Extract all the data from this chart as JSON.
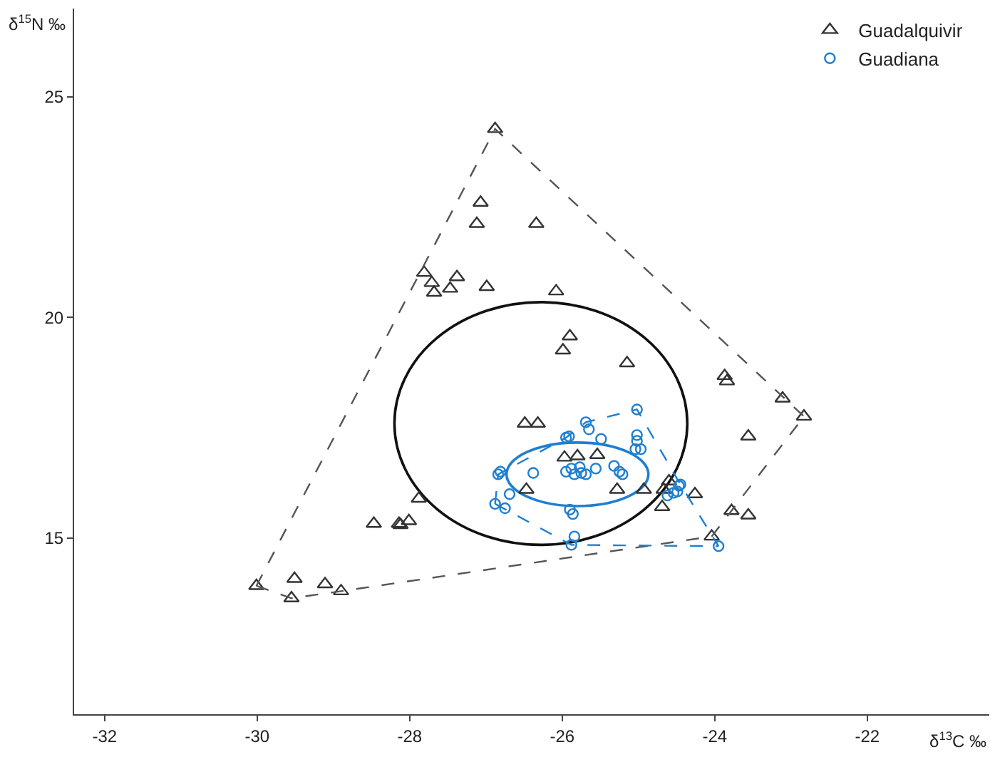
{
  "chart_data": {
    "type": "scatter",
    "xlabel": "δ$^{13}$C ‰",
    "ylabel": "δ$^{15}$N ‰",
    "xlim": [
      -32.4,
      -20.4
    ],
    "ylim": [
      11.0,
      27.0
    ],
    "xticks": [
      -32,
      -30,
      -28,
      -26,
      -24,
      -22
    ],
    "yticks": [
      15,
      20,
      25
    ],
    "grid": false,
    "legend": "top right",
    "series": [
      {
        "name": "Guadalquivir",
        "color": "#333333",
        "marker": "triangle",
        "x": [
          -26.88,
          -27.07,
          -27.12,
          -26.34,
          -27.81,
          -27.71,
          -27.68,
          -27.38,
          -27.47,
          -26.99,
          -26.08,
          -25.9,
          -25.99,
          -25.15,
          -26.49,
          -26.32,
          -25.97,
          -25.8,
          -25.54,
          -26.47,
          -25.28,
          -24.93,
          -24.67,
          -24.6,
          -24.69,
          -24.26,
          -23.78,
          -23.56,
          -24.04,
          -23.56,
          -23.87,
          -23.84,
          -23.11,
          -22.83,
          -27.88,
          -28.47,
          -28.14,
          -28.12,
          -28.01,
          -30.01,
          -29.51,
          -29.55,
          -29.11,
          -28.9
        ],
        "values": [
          24.27,
          22.6,
          22.12,
          22.12,
          21.01,
          20.78,
          20.56,
          20.91,
          20.65,
          20.69,
          20.59,
          19.57,
          19.25,
          18.96,
          17.59,
          17.59,
          16.82,
          16.85,
          16.88,
          16.09,
          16.09,
          16.09,
          16.09,
          16.28,
          15.7,
          15.99,
          15.61,
          15.51,
          15.03,
          17.3,
          18.67,
          18.55,
          18.16,
          17.75,
          15.89,
          15.32,
          15.32,
          15.29,
          15.38,
          13.91,
          14.07,
          13.63,
          13.95,
          13.79
        ]
      },
      {
        "name": "Guadiana",
        "color": "#1f7fd0",
        "marker": "circle",
        "x": [
          -25.02,
          -25.69,
          -25.65,
          -25.95,
          -25.91,
          -25.49,
          -25.02,
          -25.02,
          -25.04,
          -24.97,
          -26.81,
          -26.84,
          -26.38,
          -25.95,
          -25.88,
          -25.84,
          -25.77,
          -25.75,
          -25.69,
          -25.56,
          -25.32,
          -25.25,
          -25.21,
          -26.69,
          -26.88,
          -26.75,
          -25.9,
          -25.86,
          -25.84,
          -25.88,
          -23.95,
          -24.62,
          -24.54,
          -24.47,
          -24.45,
          -24.49
        ],
        "values": [
          17.91,
          17.62,
          17.46,
          17.27,
          17.3,
          17.24,
          17.33,
          17.2,
          17.01,
          17.01,
          16.5,
          16.44,
          16.47,
          16.5,
          16.57,
          16.44,
          16.6,
          16.47,
          16.44,
          16.57,
          16.63,
          16.5,
          16.44,
          15.99,
          15.77,
          15.67,
          15.64,
          15.54,
          15.03,
          14.84,
          14.81,
          15.96,
          16.02,
          16.18,
          16.21,
          16.05
        ]
      },
      {
        "color": "#555555",
        "type": "line",
        "line_style": "dashed",
        "marker": "none",
        "x": [
          -30.01,
          -26.88,
          -22.83
        ],
        "values": [
          13.91,
          24.27,
          17.75
        ]
      },
      {
        "color": "#555555",
        "type": "line",
        "line_style": "dashed",
        "marker": "none",
        "x": [
          -30.01,
          -29.55,
          -28.9,
          -24.04,
          -22.83
        ],
        "values": [
          13.91,
          13.63,
          13.79,
          15.03,
          17.75
        ]
      },
      {
        "color": "#1f7fd0",
        "type": "line",
        "line_style": "dashed",
        "marker": "none",
        "x": [
          -26.88,
          -26.84,
          -25.95,
          -25.69,
          -25.02,
          -24.45,
          -23.95
        ],
        "values": [
          15.77,
          16.44,
          17.27,
          17.62,
          17.91,
          16.21,
          14.81
        ]
      },
      {
        "color": "#1f7fd0",
        "type": "line",
        "line_style": "dashed",
        "marker": "none",
        "x": [
          -26.88,
          -25.88,
          -23.95
        ],
        "values": [
          15.77,
          14.84,
          14.81
        ]
      }
    ]
  }
}
